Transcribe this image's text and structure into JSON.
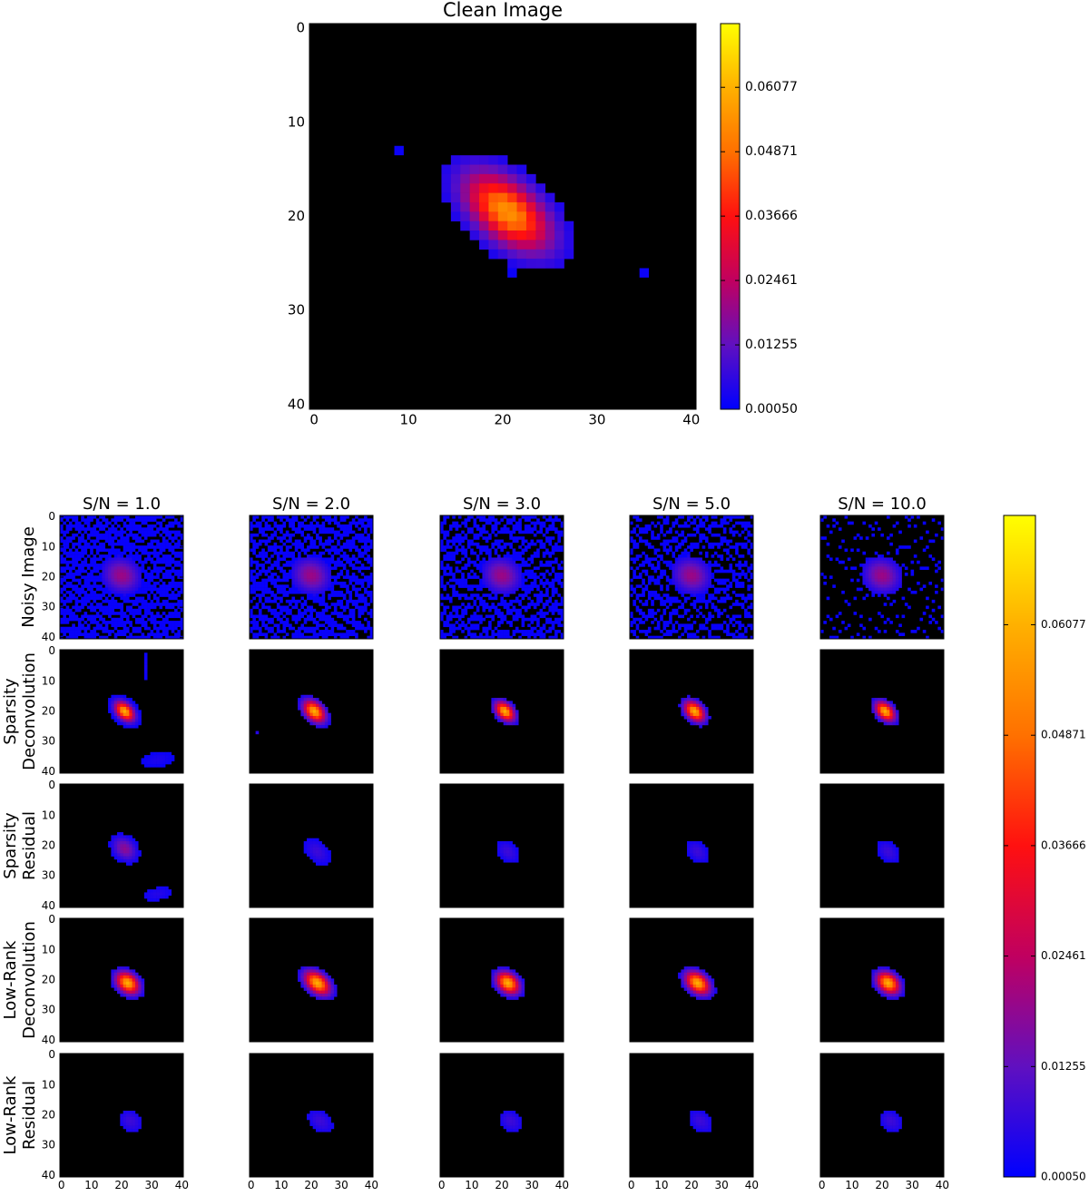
{
  "chart_data": [
    {
      "type": "heatmap",
      "title": "Clean Image",
      "xlim": [
        -0.5,
        40.5
      ],
      "ylim": [
        -0.5,
        40.5
      ],
      "xticks": [
        0,
        10,
        20,
        30,
        40
      ],
      "yticks": [
        0,
        10,
        20,
        30,
        40
      ],
      "clim": [
        0.0005,
        0.0727
      ],
      "cticks": [
        {
          "value": 0.0005,
          "label": "0.00050"
        },
        0.01255,
        0.02461,
        0.03666,
        0.04871,
        0.06077
      ],
      "colormap": [
        "#0000ff",
        "#6010c0",
        "#c00060",
        "#ff1010",
        "#ff7000",
        "#ffb000",
        "#ffff00"
      ],
      "image": {
        "blobs": [
          [
            20.5,
            19.5,
            0.055,
            3.6,
            2.0,
            40
          ]
        ],
        "points": [
          [
            9,
            13,
            0.002
          ],
          [
            35,
            26,
            0.002
          ],
          [
            21,
            26,
            0.002
          ]
        ],
        "noise": 0,
        "cut": 0.004
      }
    },
    {
      "type": "heatmap-grid",
      "columns": [
        "S/N = 1.0",
        "S/N = 2.0",
        "S/N = 3.0",
        "S/N = 5.0",
        "S/N = 10.0"
      ],
      "rows": [
        [
          "Noisy Image"
        ],
        [
          "Sparsity",
          "Deconvolution"
        ],
        [
          "Sparsity",
          "Residual"
        ],
        [
          "Low-Rank",
          "Deconvolution"
        ],
        [
          "Low-Rank",
          "Residual"
        ]
      ],
      "xlim": [
        -0.5,
        40.5
      ],
      "ylim": [
        -0.5,
        40.5
      ],
      "xticks": [
        0,
        10,
        20,
        30,
        40
      ],
      "yticks": [
        0,
        10,
        20,
        30,
        40
      ],
      "clim": [
        0.0005,
        0.0727
      ],
      "cticks": [
        {
          "value": 0.0005,
          "label": "0.00050"
        },
        0.01255,
        0.02461,
        0.03666,
        0.04871,
        0.06077
      ],
      "colormap": [
        "#0000ff",
        "#6010c0",
        "#c00060",
        "#ff1010",
        "#ff7000",
        "#ffb000",
        "#ffff00"
      ],
      "panels": [
        [
          {
            "blobs": [
              [
                20,
                19.5,
                0.02,
                4,
                3.5,
                30
              ]
            ],
            "noise": 0.7,
            "cut": 0.004
          },
          {
            "blobs": [
              [
                20,
                19.5,
                0.02,
                4,
                3.5,
                30
              ]
            ],
            "noise": 0.6,
            "cut": 0.004
          },
          {
            "blobs": [
              [
                20,
                19.5,
                0.02,
                4,
                3.5,
                30
              ]
            ],
            "noise": 0.55,
            "cut": 0.004
          },
          {
            "blobs": [
              [
                20,
                19.5,
                0.02,
                4,
                3.5,
                30
              ]
            ],
            "noise": 0.45,
            "cut": 0.004
          },
          {
            "blobs": [
              [
                20,
                19.5,
                0.02,
                4,
                3.5,
                30
              ]
            ],
            "noise": 0.12,
            "cut": 0.004
          }
        ],
        [
          {
            "blobs": [
              [
                21,
                20,
                0.06,
                2.5,
                1.6,
                45
              ],
              [
                32,
                36,
                0.004,
                4,
                1.8,
                -10
              ],
              [
                28,
                5,
                0.003,
                0.6,
                4,
                0
              ]
            ],
            "noise": 0,
            "cut": 0.0015
          },
          {
            "blobs": [
              [
                21,
                20,
                0.06,
                2.8,
                1.8,
                45
              ],
              [
                2,
                27,
                0.005,
                0.6,
                0.6,
                0
              ]
            ],
            "noise": 0,
            "cut": 0.004
          },
          {
            "blobs": [
              [
                21,
                20,
                0.06,
                2.5,
                1.6,
                45
              ]
            ],
            "noise": 0,
            "cut": 0.004
          },
          {
            "blobs": [
              [
                21,
                20,
                0.06,
                2.6,
                1.7,
                45
              ]
            ],
            "noise": 0,
            "cut": 0.004
          },
          {
            "blobs": [
              [
                21,
                20,
                0.06,
                2.5,
                1.6,
                45
              ]
            ],
            "noise": 0,
            "cut": 0.004
          }
        ],
        [
          {
            "blobs": [
              [
                21,
                21,
                0.018,
                3,
                2.2,
                45
              ],
              [
                32,
                36,
                0.005,
                4,
                1.8,
                -10
              ]
            ],
            "noise": 0,
            "cut": 0.0025
          },
          {
            "blobs": [
              [
                22,
                22,
                0.008,
                3.5,
                2.2,
                45
              ]
            ],
            "noise": 0,
            "cut": 0.0025
          },
          {
            "blobs": [
              [
                22,
                22,
                0.008,
                3,
                2,
                45
              ]
            ],
            "noise": 0,
            "cut": 0.0025
          },
          {
            "blobs": [
              [
                22,
                22,
                0.008,
                3,
                2,
                45
              ]
            ],
            "noise": 0,
            "cut": 0.0025
          },
          {
            "blobs": [
              [
                22,
                22,
                0.008,
                3,
                2,
                45
              ]
            ],
            "noise": 0,
            "cut": 0.0025
          }
        ],
        [
          {
            "blobs": [
              [
                22,
                21,
                0.06,
                2.8,
                2.0,
                40
              ]
            ],
            "noise": 0,
            "cut": 0.004
          },
          {
            "blobs": [
              [
                22,
                21,
                0.06,
                3.2,
                2.0,
                40
              ]
            ],
            "noise": 0,
            "cut": 0.004
          },
          {
            "blobs": [
              [
                22,
                21,
                0.06,
                2.8,
                2.0,
                40
              ]
            ],
            "noise": 0,
            "cut": 0.004
          },
          {
            "blobs": [
              [
                22,
                21,
                0.06,
                3.0,
                2.0,
                40
              ]
            ],
            "noise": 0,
            "cut": 0.004
          },
          {
            "blobs": [
              [
                22,
                21,
                0.06,
                2.8,
                2.0,
                40
              ]
            ],
            "noise": 0,
            "cut": 0.004
          }
        ],
        [
          {
            "blobs": [
              [
                23,
                22,
                0.008,
                3,
                2.4,
                40
              ]
            ],
            "noise": 0,
            "cut": 0.003
          },
          {
            "blobs": [
              [
                23,
                22,
                0.008,
                3.4,
                2.2,
                40
              ]
            ],
            "noise": 0,
            "cut": 0.003
          },
          {
            "blobs": [
              [
                23,
                22,
                0.008,
                3,
                2.2,
                40
              ]
            ],
            "noise": 0,
            "cut": 0.003
          },
          {
            "blobs": [
              [
                23,
                22,
                0.008,
                3.2,
                2.2,
                40
              ]
            ],
            "noise": 0,
            "cut": 0.003
          },
          {
            "blobs": [
              [
                23,
                22,
                0.008,
                3,
                2.2,
                40
              ]
            ],
            "noise": 0,
            "cut": 0.003
          }
        ]
      ]
    }
  ]
}
